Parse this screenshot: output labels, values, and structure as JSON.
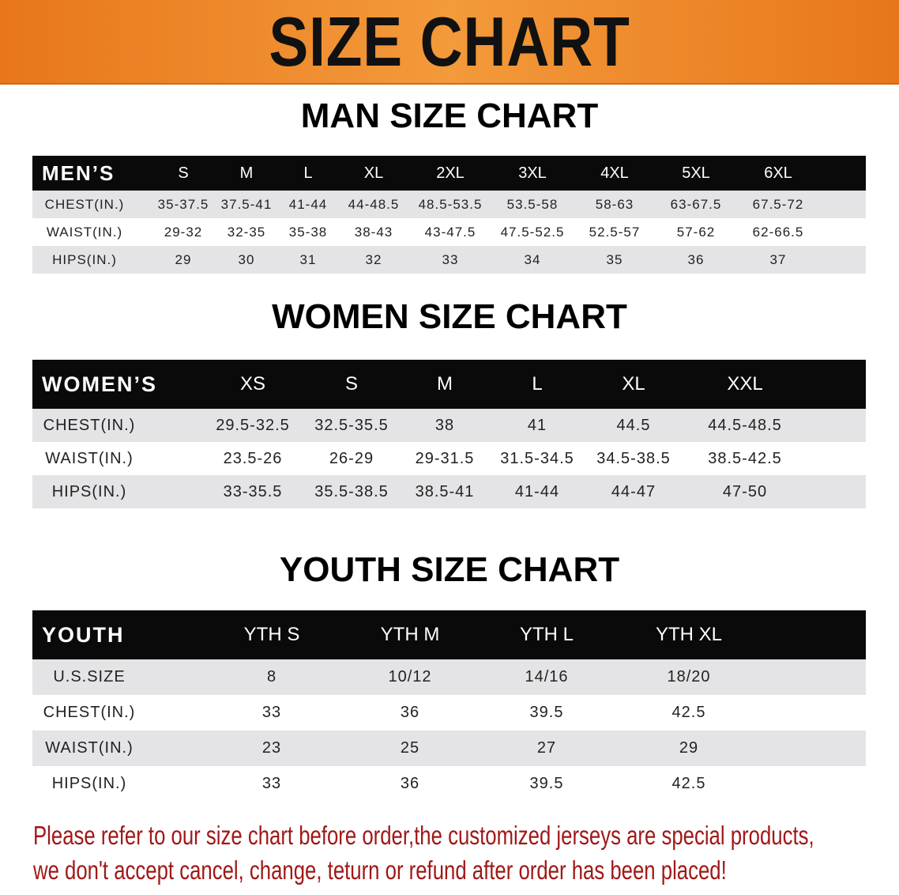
{
  "banner": {
    "title": "SIZE CHART",
    "color": "#ee821f"
  },
  "men": {
    "title": "MAN SIZE CHART",
    "header": "MEN’S",
    "sizes": [
      "S",
      "M",
      "L",
      "XL",
      "2XL",
      "3XL",
      "4XL",
      "5XL",
      "6XL"
    ],
    "rows": [
      {
        "label": "CHEST(IN.)",
        "values": [
          "35-37.5",
          "37.5-41",
          "41-44",
          "44-48.5",
          "48.5-53.5",
          "53.5-58",
          "58-63",
          "63-67.5",
          "67.5-72"
        ]
      },
      {
        "label": "WAIST(IN.)",
        "values": [
          "29-32",
          "32-35",
          "35-38",
          "38-43",
          "43-47.5",
          "47.5-52.5",
          "52.5-57",
          "57-62",
          "62-66.5"
        ]
      },
      {
        "label": "HIPS(IN.)",
        "values": [
          "29",
          "30",
          "31",
          "32",
          "33",
          "34",
          "35",
          "36",
          "37"
        ]
      }
    ]
  },
  "women": {
    "title": "WOMEN SIZE CHART",
    "header": "WOMEN’S",
    "sizes": [
      "XS",
      "S",
      "M",
      "L",
      "XL",
      "XXL"
    ],
    "rows": [
      {
        "label": "CHEST(IN.)",
        "values": [
          "29.5-32.5",
          "32.5-35.5",
          "38",
          "41",
          "44.5",
          "44.5-48.5"
        ]
      },
      {
        "label": "WAIST(IN.)",
        "values": [
          "23.5-26",
          "26-29",
          "29-31.5",
          "31.5-34.5",
          "34.5-38.5",
          "38.5-42.5"
        ]
      },
      {
        "label": "HIPS(IN.)",
        "values": [
          "33-35.5",
          "35.5-38.5",
          "38.5-41",
          "41-44",
          "44-47",
          "47-50"
        ]
      }
    ]
  },
  "youth": {
    "title": "YOUTH SIZE CHART",
    "header": "YOUTH",
    "sizes": [
      "YTH S",
      "YTH M",
      "YTH L",
      "YTH XL"
    ],
    "rows": [
      {
        "label": "U.S.SIZE",
        "values": [
          "8",
          "10/12",
          "14/16",
          "18/20"
        ]
      },
      {
        "label": "CHEST(IN.)",
        "values": [
          "33",
          "36",
          "39.5",
          "42.5"
        ]
      },
      {
        "label": "WAIST(IN.)",
        "values": [
          "23",
          "25",
          "27",
          "29"
        ]
      },
      {
        "label": "HIPS(IN.)",
        "values": [
          "33",
          "36",
          "39.5",
          "42.5"
        ]
      }
    ]
  },
  "notice": {
    "line1": "Please refer to our size chart before order,the customized jerseys are special products,",
    "line2": "we don't accept cancel, change, teturn or refund after order has been placed!",
    "color": "#a01818"
  }
}
